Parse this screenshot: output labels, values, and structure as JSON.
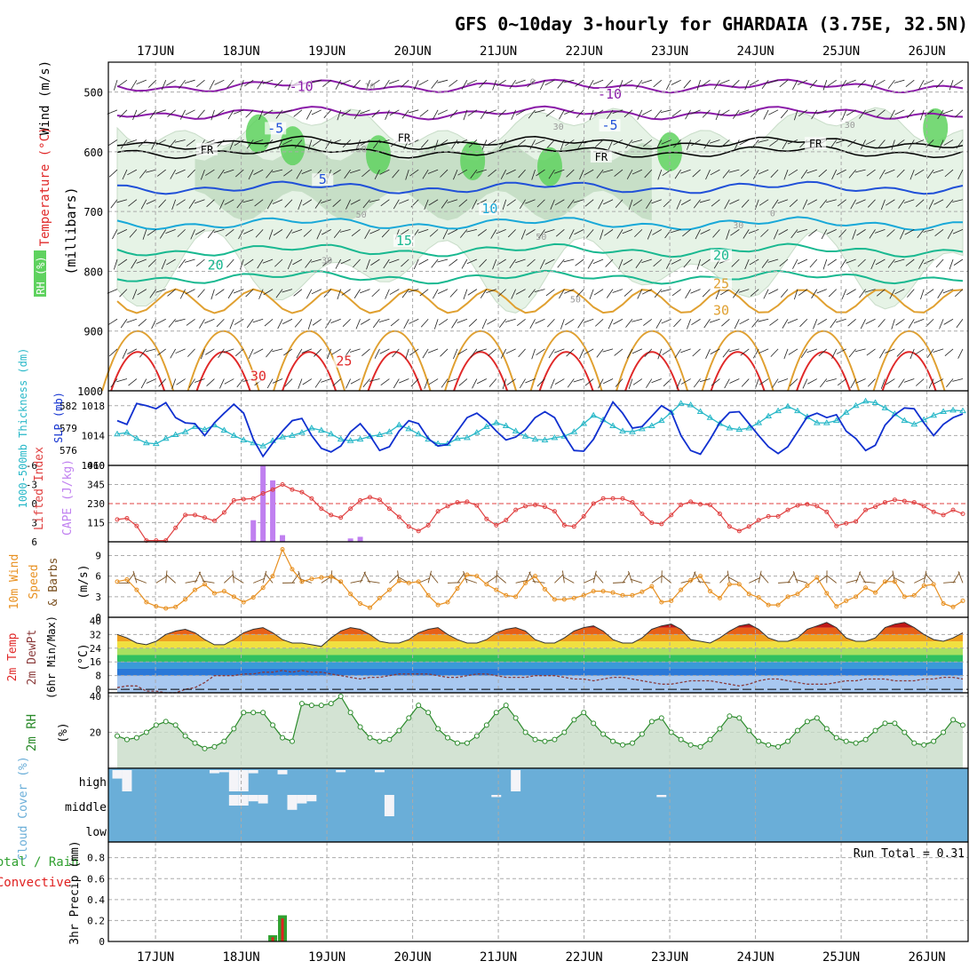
{
  "title": "GFS 0~10day 3-hourly for GHARDAIA (3.75E, 32.5N)",
  "colors": {
    "rh_green_light": "#e6f3e6",
    "rh_green_mid": "#bcd8bc",
    "rh_green_dark": "#5fd25f",
    "temp_purple": "#8a1aa8",
    "temp_blue": "#2050d8",
    "temp_cyan": "#18a8d8",
    "temp_teal": "#18b890",
    "temp_orange": "#e0a030",
    "temp_red": "#e02828",
    "slp_blue": "#1030d0",
    "thick_cyan": "#28b8c8",
    "li_red": "#e04040",
    "cape_purple": "#c080f0",
    "wind_orange": "#e89020",
    "rh2_green": "#2a8a2a",
    "cloud_blue": "#6aaed8",
    "precip_green": "#30a030",
    "precip_red": "#e02020"
  },
  "chart_data": [
    {
      "type": "contour",
      "name": "upper-air cross-section",
      "x_ticks": [
        "17JUN",
        "18JUN",
        "19JUN",
        "20JUN",
        "21JUN",
        "22JUN",
        "23JUN",
        "24JUN",
        "25JUN",
        "26JUN"
      ],
      "y_ticks": [
        500,
        600,
        700,
        800,
        900,
        1000
      ],
      "ylim": [
        450,
        1000
      ],
      "ylabel": "(millibars)",
      "label_wind": "Wind (m/s)",
      "label_temp": "Temperature (°C)",
      "label_rh": "RH (%)",
      "isotherm_levels": [
        -10,
        -5,
        5,
        10,
        15,
        20,
        25,
        30
      ],
      "isotherm_labels": [
        {
          "text": "-10",
          "x": 1.7,
          "p": 495
        },
        {
          "text": "-10",
          "x": 5.3,
          "p": 508
        },
        {
          "text": "-5",
          "x": 1.4,
          "p": 565
        },
        {
          "text": "-5",
          "x": 5.3,
          "p": 560
        },
        {
          "text": "FR",
          "x": 0.6,
          "p": 600
        },
        {
          "text": "FR",
          "x": 2.9,
          "p": 580
        },
        {
          "text": "FR",
          "x": 5.2,
          "p": 612
        },
        {
          "text": "FR",
          "x": 7.7,
          "p": 590
        },
        {
          "text": "5",
          "x": 1.95,
          "p": 651
        },
        {
          "text": "10",
          "x": 3.9,
          "p": 700
        },
        {
          "text": "15",
          "x": 2.9,
          "p": 753
        },
        {
          "text": "20",
          "x": 0.7,
          "p": 794
        },
        {
          "text": "20",
          "x": 6.6,
          "p": 778
        },
        {
          "text": "25",
          "x": 2.2,
          "p": 955
        },
        {
          "text": "25",
          "x": 6.6,
          "p": 825
        },
        {
          "text": "30",
          "x": 1.2,
          "p": 980
        },
        {
          "text": "30",
          "x": 6.6,
          "p": 870
        }
      ],
      "rh_labels": [
        {
          "text": "10",
          "x": 2.5,
          "p": 495
        },
        {
          "text": "30",
          "x": 4.7,
          "p": 563
        },
        {
          "text": "50",
          "x": 2.4,
          "p": 600
        },
        {
          "text": "50",
          "x": 2.4,
          "p": 710
        },
        {
          "text": "50",
          "x": 4.5,
          "p": 747
        },
        {
          "text": "30",
          "x": 6.8,
          "p": 728
        },
        {
          "text": "30",
          "x": 2.0,
          "p": 787
        },
        {
          "text": "50",
          "x": 4.9,
          "p": 852
        },
        {
          "text": "0",
          "x": 7.2,
          "p": 708
        },
        {
          "text": "30",
          "x": 8.1,
          "p": 560
        },
        {
          "text": "0",
          "x": 4.4,
          "p": 488
        }
      ]
    },
    {
      "type": "line",
      "name": "SLP and thickness",
      "y_ticks_left": [
        576,
        579,
        582
      ],
      "y_ticks_right": [
        1010,
        1014,
        1018
      ],
      "label_thickness": "1000-500mb Thickness (dm)",
      "label_slp": "SLP (mb)",
      "slp": [
        1016,
        1015.5,
        1018.3,
        1018,
        1017.6,
        1018.4,
        1016.4,
        1015.7,
        1015.6,
        1014,
        1015.7,
        1017,
        1018.2,
        1017,
        1013.5,
        1011.2,
        1013,
        1014.6,
        1016,
        1016.3,
        1014,
        1012.3,
        1011.8,
        1012.6,
        1014.5,
        1015.6,
        1014,
        1012,
        1012.5,
        1014.6,
        1016,
        1015.6,
        1013.6,
        1012.6,
        1012.8,
        1014.6,
        1016.4,
        1017,
        1016,
        1014.6,
        1013.4,
        1013.8,
        1014.8,
        1016.4,
        1017.2,
        1016.4,
        1014,
        1012,
        1011.9,
        1013.5,
        1016,
        1018.5,
        1017,
        1015,
        1015.2,
        1016.6,
        1018,
        1017.2,
        1014,
        1012,
        1011.5,
        1013.5,
        1015.7,
        1017.1,
        1017.2,
        1015.6,
        1014,
        1012.5,
        1011.6,
        1012.5,
        1014.5,
        1016.5,
        1017,
        1016.4,
        1016.8,
        1014.6,
        1013.6,
        1012,
        1012.7,
        1015.4,
        1016.8,
        1017.7,
        1017.6,
        1015.7,
        1014,
        1015.5,
        1016.4,
        1016.9
      ],
      "thickness": [
        578.2,
        578.4,
        577.6,
        577.0,
        576.9,
        577.6,
        578.1,
        578.5,
        579.2,
        578.8,
        579.4,
        578.7,
        578.0,
        577.4,
        577.0,
        576.6,
        577.3,
        577.8,
        578.0,
        578.4,
        579.0,
        578.7,
        578.2,
        577.5,
        577.3,
        577.5,
        577.9,
        578.1,
        578.5,
        579.4,
        578.9,
        578.2,
        577.5,
        576.9,
        576.9,
        577.6,
        577.7,
        578.4,
        579.2,
        579.7,
        579.3,
        578.6,
        577.9,
        577.5,
        577.4,
        577.7,
        577.9,
        578.5,
        579.6,
        580.7,
        580.1,
        579.3,
        578.6,
        578.5,
        578.9,
        579.3,
        580.0,
        581.1,
        582.3,
        582.1,
        581.2,
        580.4,
        579.6,
        579.0,
        578.8,
        579.0,
        579.7,
        580.6,
        581.3,
        581.9,
        581.3,
        580.5,
        579.7,
        579.7,
        580.0,
        581.1,
        582.0,
        582.6,
        582.4,
        581.7,
        580.9,
        580.0,
        579.5,
        580.1,
        580.7,
        581.2,
        581.4,
        581.3
      ]
    },
    {
      "type": "line_bar",
      "name": "Lifted index and CAPE",
      "y_ticks_left": [
        "-6",
        "-3",
        "0",
        "3",
        "6"
      ],
      "y_ticks_right": [
        115,
        230,
        345,
        460
      ],
      "label_li": "Lifted Index",
      "label_cape": "CAPE (J/kg)",
      "lifted_index": [
        2.5,
        2.3,
        3.5,
        5.8,
        5.8,
        5.8,
        3.8,
        1.8,
        1.8,
        2.2,
        2.7,
        1.4,
        -0.5,
        -0.7,
        -0.8,
        -1.6,
        -2.2,
        -3.0,
        -2.2,
        -1.8,
        -0.8,
        0.8,
        1.8,
        2.2,
        0.8,
        -0.5,
        -1.0,
        -0.6,
        0.8,
        2.1,
        3.6,
        4.3,
        3.4,
        1.2,
        0.4,
        -0.2,
        -0.3,
        0.3,
        2.4,
        3.4,
        2.6,
        1.0,
        0.4,
        0.2,
        0.5,
        1.2,
        3.4,
        3.6,
        2.0,
        0.0,
        -0.8,
        -0.8,
        -0.8,
        -0.2,
        1.6,
        3.0,
        3.2,
        1.8,
        0.2,
        -0.3,
        0.1,
        0.2,
        1.6,
        3.6,
        4.3,
        3.6,
        2.6,
        2.0,
        2.0,
        1.0,
        0.3,
        0.1,
        0.4,
        1.3,
        3.5,
        3.1,
        2.8,
        1.0,
        0.5,
        -0.2,
        -0.6,
        -0.4,
        -0.2,
        0.4,
        1.3,
        1.8,
        1.0,
        1.6
      ],
      "cape": [
        0,
        0,
        0,
        0,
        0,
        0,
        0,
        0,
        0,
        0,
        0,
        0,
        0,
        0,
        130,
        460,
        370,
        40,
        0,
        0,
        0,
        0,
        0,
        0,
        20,
        30,
        0,
        0,
        0,
        0,
        0,
        0,
        0,
        0,
        0,
        0,
        0,
        0,
        0,
        0,
        0,
        0,
        0,
        0,
        0,
        0,
        0,
        0,
        0,
        0,
        0,
        0,
        0,
        0,
        0,
        0,
        0,
        0,
        0,
        0,
        0,
        0,
        0,
        0,
        0,
        0,
        0,
        0,
        0,
        0,
        0,
        0,
        0,
        0,
        0,
        0,
        0,
        0,
        0,
        0,
        0,
        0,
        0,
        0,
        0,
        0,
        0,
        0
      ]
    },
    {
      "type": "line",
      "name": "10m wind speed and barbs",
      "y_ticks": [
        0,
        3,
        6,
        9
      ],
      "ylabel": "(m/s)",
      "label_wind": "10m Wind",
      "label_speed": "Speed",
      "label_barbs": "& Barbs",
      "speed": [
        5.2,
        5.5,
        4.0,
        2.2,
        1.6,
        1.3,
        1.5,
        2.6,
        4.0,
        4.8,
        3.5,
        3.8,
        3.0,
        2.2,
        2.9,
        4.3,
        6.0,
        9.9,
        7.0,
        5.2,
        5.6,
        5.8,
        5.9,
        5.2,
        3.4,
        2.0,
        1.4,
        2.8,
        4.0,
        5.3,
        5.0,
        5.2,
        3.2,
        1.8,
        2.2,
        4.2,
        6.2,
        6.0,
        4.8,
        4.0,
        3.2,
        3.0,
        5.0,
        6.0,
        4.1,
        2.6,
        2.6,
        2.8,
        3.2,
        3.8,
        3.8,
        3.6,
        3.2,
        3.2,
        3.7,
        4.5,
        2.2,
        2.4,
        4.0,
        5.4,
        6.0,
        3.8,
        2.8,
        4.8,
        4.8,
        3.4,
        2.9,
        1.8,
        1.8,
        3.0,
        3.4,
        4.6,
        5.8,
        3.5,
        1.6,
        2.4,
        3.0,
        4.3,
        3.6,
        5.2,
        5.2,
        3.0,
        3.2,
        4.6,
        4.8,
        2.0,
        1.5,
        2.4
      ]
    },
    {
      "type": "area_line",
      "name": "2m temperature and dewpoint",
      "y_ticks": [
        0,
        8,
        16,
        24,
        32,
        40
      ],
      "ylabel": "(°C)",
      "label_temp": "2m Temp",
      "label_dew": "2m DewPt",
      "label_minmax": "(6hr Min/Max)",
      "temp": [
        32,
        30,
        27,
        26,
        28,
        32,
        34,
        35,
        33,
        29,
        26,
        26,
        29,
        33,
        35,
        36,
        33,
        29,
        27,
        27,
        26,
        25,
        30,
        34,
        36,
        35,
        32,
        28,
        27,
        27,
        29,
        33,
        35,
        36,
        32,
        29,
        27,
        27,
        29,
        33,
        35,
        36,
        34,
        29,
        27,
        27,
        30,
        34,
        36,
        37,
        34,
        29,
        27,
        27,
        30,
        35,
        37,
        38,
        35,
        29,
        28,
        27,
        30,
        34,
        37,
        38,
        35,
        30,
        28,
        28,
        30,
        35,
        37,
        39,
        36,
        30,
        28,
        28,
        30,
        36,
        38,
        39,
        36,
        32,
        29,
        28,
        30,
        33
      ],
      "dewpoint": [
        1,
        2,
        2,
        -1,
        -1,
        -2,
        -2,
        0,
        1,
        4,
        8,
        8,
        8,
        9,
        9,
        10,
        10,
        11,
        10,
        11,
        10,
        10,
        9,
        8,
        7,
        6,
        7,
        7,
        8,
        9,
        9,
        9,
        9,
        8,
        7,
        7,
        8,
        9,
        9,
        8,
        7,
        7,
        7,
        8,
        8,
        8,
        7,
        6,
        6,
        5,
        6,
        7,
        7,
        6,
        5,
        4,
        3,
        3,
        4,
        5,
        5,
        5,
        4,
        3,
        2,
        3,
        5,
        6,
        6,
        5,
        4,
        3,
        3,
        3,
        4,
        5,
        5,
        6,
        6,
        6,
        5,
        5,
        5,
        6,
        6,
        7,
        7,
        6
      ]
    },
    {
      "type": "area_line",
      "name": "2m relative humidity",
      "y_ticks": [
        20,
        40
      ],
      "ylabel": "(%)",
      "label": "2m RH",
      "rh": [
        18,
        16,
        17,
        20,
        24,
        26,
        24,
        18,
        14,
        11,
        12,
        15,
        22,
        31,
        31,
        31,
        24,
        17,
        15,
        36,
        35,
        35,
        36,
        40,
        31,
        23,
        17,
        15,
        16,
        21,
        28,
        35,
        31,
        22,
        17,
        14,
        14,
        18,
        24,
        31,
        35,
        28,
        20,
        16,
        15,
        16,
        20,
        27,
        31,
        25,
        19,
        15,
        13,
        14,
        19,
        26,
        28,
        20,
        16,
        13,
        12,
        16,
        22,
        29,
        28,
        21,
        15,
        13,
        12,
        15,
        21,
        26,
        28,
        22,
        17,
        15,
        14,
        16,
        21,
        25,
        25,
        20,
        14,
        13,
        15,
        20,
        27,
        24
      ]
    },
    {
      "type": "bar",
      "name": "Cloud cover",
      "y_ticks": [
        "high",
        "middle",
        "low"
      ],
      "ylabel": "Cloud Cover (%)",
      "high": [
        0.4,
        1,
        0,
        0,
        0,
        0,
        0,
        0,
        0,
        0,
        0.15,
        0.1,
        1,
        1,
        0.15,
        0,
        0,
        0.2,
        0,
        0,
        0,
        0,
        0,
        0.1,
        0,
        0,
        0,
        0.1,
        0,
        0,
        0,
        0,
        0,
        0,
        0,
        0,
        0,
        0,
        0,
        0,
        0,
        1,
        0,
        0,
        0,
        0,
        0,
        0,
        0,
        0,
        0,
        0,
        0,
        0,
        0,
        0,
        0,
        0,
        0,
        0,
        0,
        0,
        0,
        0,
        0,
        0,
        0,
        0,
        0,
        0,
        0,
        0,
        0,
        0,
        0,
        0,
        0,
        0,
        0,
        0,
        0,
        0,
        0,
        0,
        0,
        0,
        0,
        0
      ],
      "middle": [
        0,
        0,
        0,
        0,
        0,
        0,
        0,
        0,
        0,
        0,
        0,
        0,
        0.5,
        0.5,
        0.3,
        0.4,
        0,
        0,
        0.7,
        0.4,
        0.3,
        0,
        0,
        0,
        0,
        0,
        0,
        0,
        1,
        0,
        0,
        0,
        0,
        0,
        0,
        0,
        0,
        0,
        0,
        0.1,
        0,
        0,
        0,
        0,
        0,
        0,
        0,
        0,
        0,
        0,
        0,
        0,
        0,
        0,
        0,
        0,
        0.1,
        0,
        0,
        0,
        0,
        0,
        0,
        0,
        0,
        0,
        0,
        0,
        0,
        0,
        0,
        0,
        0,
        0,
        0,
        0,
        0,
        0,
        0,
        0,
        0,
        0,
        0,
        0,
        0,
        0,
        0,
        0
      ],
      "low": [
        0,
        0,
        0,
        0,
        0,
        0,
        0,
        0,
        0,
        0,
        0,
        0,
        0,
        0,
        0,
        0,
        0,
        0,
        0,
        0,
        0,
        0,
        0,
        0,
        0,
        0,
        0,
        0,
        0,
        0,
        0,
        0,
        0,
        0,
        0,
        0,
        0,
        0,
        0,
        0,
        0,
        0,
        0,
        0,
        0,
        0,
        0,
        0,
        0,
        0,
        0,
        0,
        0,
        0,
        0,
        0,
        0,
        0,
        0,
        0,
        0,
        0,
        0,
        0,
        0,
        0,
        0,
        0,
        0,
        0,
        0,
        0,
        0,
        0,
        0,
        0,
        0,
        0,
        0,
        0,
        0,
        0,
        0,
        0,
        0,
        0,
        0,
        0
      ]
    },
    {
      "type": "bar",
      "name": "3hr precipitation",
      "y_ticks": [
        0,
        0.2,
        0.4,
        0.6,
        0.8
      ],
      "ylim": [
        0,
        0.95
      ],
      "ylabel": "3hr Precip (mm)",
      "label_total": "Total / Rain",
      "label_conv": "Convective",
      "run_total_label": "Run Total = 0.31",
      "total": [
        0,
        0,
        0,
        0,
        0,
        0,
        0,
        0,
        0,
        0,
        0,
        0,
        0,
        0,
        0,
        0,
        0.06,
        0.25,
        0,
        0,
        0,
        0,
        0,
        0,
        0,
        0,
        0,
        0,
        0,
        0,
        0,
        0,
        0,
        0,
        0,
        0,
        0,
        0,
        0,
        0,
        0,
        0,
        0,
        0,
        0,
        0,
        0,
        0,
        0,
        0,
        0,
        0,
        0,
        0,
        0,
        0,
        0,
        0,
        0,
        0,
        0,
        0,
        0,
        0,
        0,
        0,
        0,
        0,
        0,
        0,
        0,
        0,
        0,
        0,
        0,
        0,
        0,
        0,
        0,
        0,
        0,
        0,
        0,
        0,
        0,
        0,
        0,
        0
      ],
      "convective": [
        0,
        0,
        0,
        0,
        0,
        0,
        0,
        0,
        0,
        0,
        0,
        0,
        0,
        0,
        0,
        0,
        0.04,
        0.22,
        0,
        0,
        0,
        0,
        0,
        0,
        0,
        0,
        0,
        0,
        0,
        0,
        0,
        0,
        0,
        0,
        0,
        0,
        0,
        0,
        0,
        0,
        0,
        0,
        0,
        0,
        0,
        0,
        0,
        0,
        0,
        0,
        0,
        0,
        0,
        0,
        0,
        0,
        0,
        0,
        0,
        0,
        0,
        0,
        0,
        0,
        0,
        0,
        0,
        0,
        0,
        0,
        0,
        0,
        0,
        0,
        0,
        0,
        0,
        0,
        0,
        0,
        0,
        0,
        0,
        0,
        0,
        0,
        0,
        0
      ]
    }
  ]
}
